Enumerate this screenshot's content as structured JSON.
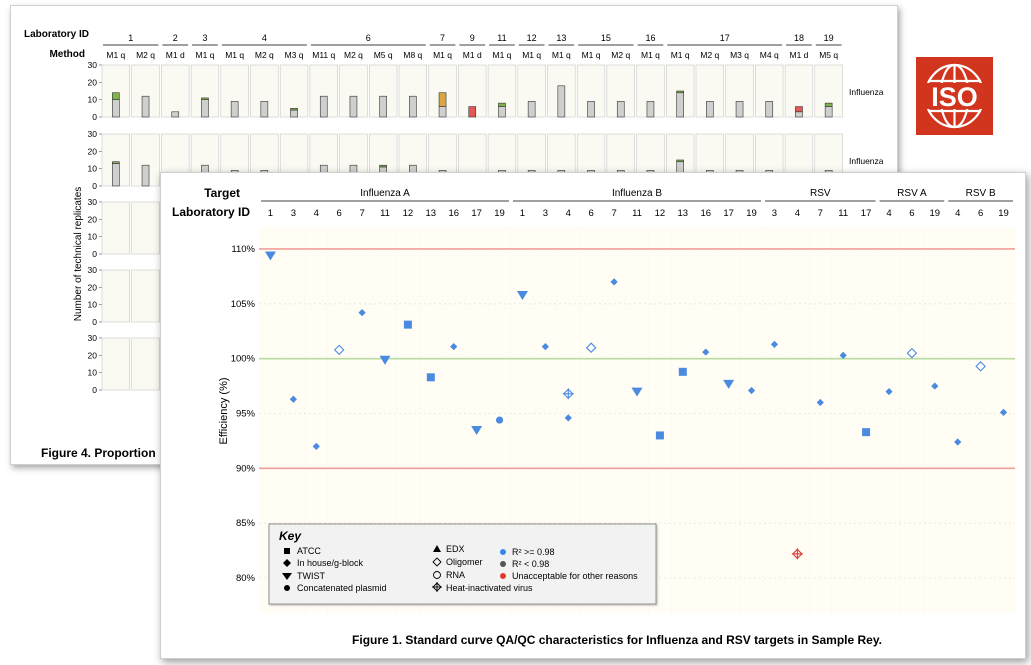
{
  "iso_logo": {
    "text": "ISO",
    "color": "#d2351d"
  },
  "back_figure": {
    "lab_id_label": "Laboratory ID",
    "method_label": "Method",
    "y_label": "Number of technical replicates",
    "caption": "Figure 4. Proportion",
    "row_labels": [
      "Influenza",
      "Influenza"
    ],
    "y_ticks": [
      "30",
      "20",
      "10",
      "0"
    ],
    "lab_groups": [
      {
        "id": "1",
        "start": 0,
        "end": 1
      },
      {
        "id": "2",
        "start": 2,
        "end": 2
      },
      {
        "id": "3",
        "start": 3,
        "end": 3
      },
      {
        "id": "4",
        "start": 4,
        "end": 6
      },
      {
        "id": "6",
        "start": 7,
        "end": 10
      },
      {
        "id": "7",
        "start": 11,
        "end": 11
      },
      {
        "id": "9",
        "start": 12,
        "end": 12
      },
      {
        "id": "11",
        "start": 13,
        "end": 13
      },
      {
        "id": "12",
        "start": 14,
        "end": 14
      },
      {
        "id": "13",
        "start": 15,
        "end": 15
      },
      {
        "id": "15",
        "start": 16,
        "end": 17
      },
      {
        "id": "16",
        "start": 18,
        "end": 18
      },
      {
        "id": "17",
        "start": 19,
        "end": 22
      },
      {
        "id": "18",
        "start": 23,
        "end": 23
      },
      {
        "id": "19",
        "start": 24,
        "end": 24
      }
    ],
    "methods": [
      "M1 q",
      "M2 q",
      "M1 d",
      "M1 q",
      "M1 q",
      "M2 q",
      "M3 q",
      "M11 q",
      "M2 q",
      "M5 q",
      "M8 q",
      "M1 q",
      "M1 d",
      "M1 q",
      "M1 q",
      "M1 q",
      "M1 q",
      "M2 q",
      "M1 q",
      "M1 q",
      "M2 q",
      "M3 q",
      "M4 q",
      "M1 d",
      "M5 q"
    ],
    "chart_data": {
      "type": "bar",
      "ylim": [
        0,
        30
      ],
      "row1_gray": [
        10,
        12,
        3,
        10,
        9,
        9,
        4,
        12,
        12,
        12,
        12,
        6,
        0,
        6,
        9,
        18,
        9,
        9,
        9,
        14,
        9,
        9,
        9,
        3,
        6
      ],
      "row1_green": [
        4,
        0,
        0,
        1,
        0,
        0,
        1,
        0,
        0,
        0,
        0,
        0,
        0,
        2,
        0,
        0,
        0,
        0,
        0,
        1,
        0,
        0,
        0,
        0,
        2
      ],
      "row1_orange": [
        0,
        0,
        0,
        0,
        0,
        0,
        0,
        0,
        0,
        0,
        0,
        8,
        0,
        0,
        0,
        0,
        0,
        0,
        0,
        0,
        0,
        0,
        0,
        0,
        0
      ],
      "row1_red": [
        0,
        0,
        0,
        0,
        0,
        0,
        0,
        0,
        0,
        0,
        0,
        0,
        6,
        0,
        0,
        0,
        0,
        0,
        0,
        0,
        0,
        0,
        0,
        3,
        0
      ],
      "row2_gray": [
        13,
        12,
        0,
        12,
        9,
        9,
        0,
        12,
        12,
        11,
        12,
        9,
        0,
        9,
        9,
        9,
        9,
        9,
        9,
        14,
        9,
        9,
        9,
        0,
        9
      ],
      "row2_green": [
        1,
        0,
        0,
        0,
        0,
        0,
        0,
        0,
        0,
        1,
        0,
        0,
        0,
        0,
        0,
        0,
        0,
        0,
        0,
        1,
        0,
        0,
        0,
        0,
        0
      ]
    }
  },
  "front_figure": {
    "target_label": "Target",
    "lab_id_label": "Laboratory ID",
    "caption": "Figure 1. Standard curve QA/QC characteristics for Influenza and RSV targets in Sample Rey.",
    "key": {
      "title": "Key",
      "col1": [
        "ATCC",
        "In house/g-block",
        "TWIST",
        "Concatenated plasmid"
      ],
      "col2": [
        "EDX",
        "Oligomer",
        "RNA",
        "Heat-inactivated virus"
      ],
      "col3": [
        "R² >= 0.98",
        "R² < 0.98",
        "Unacceptable for other reasons"
      ]
    },
    "chart_data": {
      "type": "scatter",
      "ylabel": "Efficiency (%)",
      "ylim": [
        79,
        111
      ],
      "yticks": [
        "80%",
        "85%",
        "90%",
        "95%",
        "100%",
        "105%",
        "110%"
      ],
      "red_lines": [
        90,
        110
      ],
      "green_line": 100,
      "colors": {
        "pass": "#4a8ae0",
        "fail": "#e03a2f",
        "red_line": "#f0a09a",
        "green_line": "#b8dca0"
      },
      "targets": [
        {
          "name": "Influenza A",
          "labs": [
            "1",
            "3",
            "4",
            "6",
            "7",
            "11",
            "12",
            "13",
            "16",
            "17",
            "19"
          ]
        },
        {
          "name": "Influenza B",
          "labs": [
            "1",
            "3",
            "4",
            "6",
            "7",
            "11",
            "12",
            "13",
            "16",
            "17",
            "19"
          ]
        },
        {
          "name": "RSV",
          "labs": [
            "3",
            "4",
            "7",
            "11",
            "17"
          ]
        },
        {
          "name": "RSV A",
          "labs": [
            "4",
            "6",
            "19"
          ]
        },
        {
          "name": "RSV B",
          "labs": [
            "4",
            "6",
            "19"
          ]
        }
      ],
      "points": [
        {
          "col": 0,
          "y": 109.4,
          "shape": "tri",
          "status": "pass"
        },
        {
          "col": 1,
          "y": 96.3,
          "shape": "diamond",
          "status": "pass"
        },
        {
          "col": 2,
          "y": 92.0,
          "shape": "diamond",
          "status": "pass"
        },
        {
          "col": 3,
          "y": 100.8,
          "shape": "diamond-open",
          "status": "pass"
        },
        {
          "col": 4,
          "y": 104.2,
          "shape": "diamond",
          "status": "pass"
        },
        {
          "col": 5,
          "y": 99.9,
          "shape": "tri",
          "status": "pass"
        },
        {
          "col": 6,
          "y": 103.1,
          "shape": "square",
          "status": "pass"
        },
        {
          "col": 7,
          "y": 98.3,
          "shape": "square",
          "status": "pass"
        },
        {
          "col": 8,
          "y": 101.1,
          "shape": "diamond",
          "status": "pass"
        },
        {
          "col": 9,
          "y": 93.5,
          "shape": "tri",
          "status": "pass"
        },
        {
          "col": 10,
          "y": 94.4,
          "shape": "circle",
          "status": "pass"
        },
        {
          "col": 11,
          "y": 105.8,
          "shape": "tri",
          "status": "pass"
        },
        {
          "col": 12,
          "y": 101.1,
          "shape": "diamond",
          "status": "pass"
        },
        {
          "col": 13,
          "y": 96.8,
          "shape": "heat",
          "status": "pass"
        },
        {
          "col": 13,
          "y": 94.6,
          "shape": "diamond",
          "status": "pass"
        },
        {
          "col": 14,
          "y": 101.0,
          "shape": "diamond-open",
          "status": "pass"
        },
        {
          "col": 15,
          "y": 107.0,
          "shape": "diamond",
          "status": "pass"
        },
        {
          "col": 16,
          "y": 97.0,
          "shape": "tri",
          "status": "pass"
        },
        {
          "col": 17,
          "y": 93.0,
          "shape": "square",
          "status": "pass"
        },
        {
          "col": 18,
          "y": 98.8,
          "shape": "square",
          "status": "pass"
        },
        {
          "col": 19,
          "y": 100.6,
          "shape": "diamond",
          "status": "pass"
        },
        {
          "col": 20,
          "y": 97.7,
          "shape": "tri",
          "status": "pass"
        },
        {
          "col": 21,
          "y": 97.1,
          "shape": "diamond",
          "status": "pass"
        },
        {
          "col": 22,
          "y": 101.3,
          "shape": "diamond",
          "status": "pass"
        },
        {
          "col": 23,
          "y": 82.2,
          "shape": "heat",
          "status": "fail"
        },
        {
          "col": 24,
          "y": 96.0,
          "shape": "diamond",
          "status": "pass"
        },
        {
          "col": 25,
          "y": 100.3,
          "shape": "diamond",
          "status": "pass"
        },
        {
          "col": 26,
          "y": 93.3,
          "shape": "square",
          "status": "pass"
        },
        {
          "col": 27,
          "y": 97.0,
          "shape": "diamond",
          "status": "pass"
        },
        {
          "col": 28,
          "y": 100.5,
          "shape": "diamond-open",
          "status": "pass"
        },
        {
          "col": 29,
          "y": 97.5,
          "shape": "diamond",
          "status": "pass"
        },
        {
          "col": 30,
          "y": 92.4,
          "shape": "diamond",
          "status": "pass"
        },
        {
          "col": 31,
          "y": 99.3,
          "shape": "diamond-open",
          "status": "pass"
        },
        {
          "col": 32,
          "y": 95.1,
          "shape": "diamond",
          "status": "pass"
        }
      ]
    }
  }
}
